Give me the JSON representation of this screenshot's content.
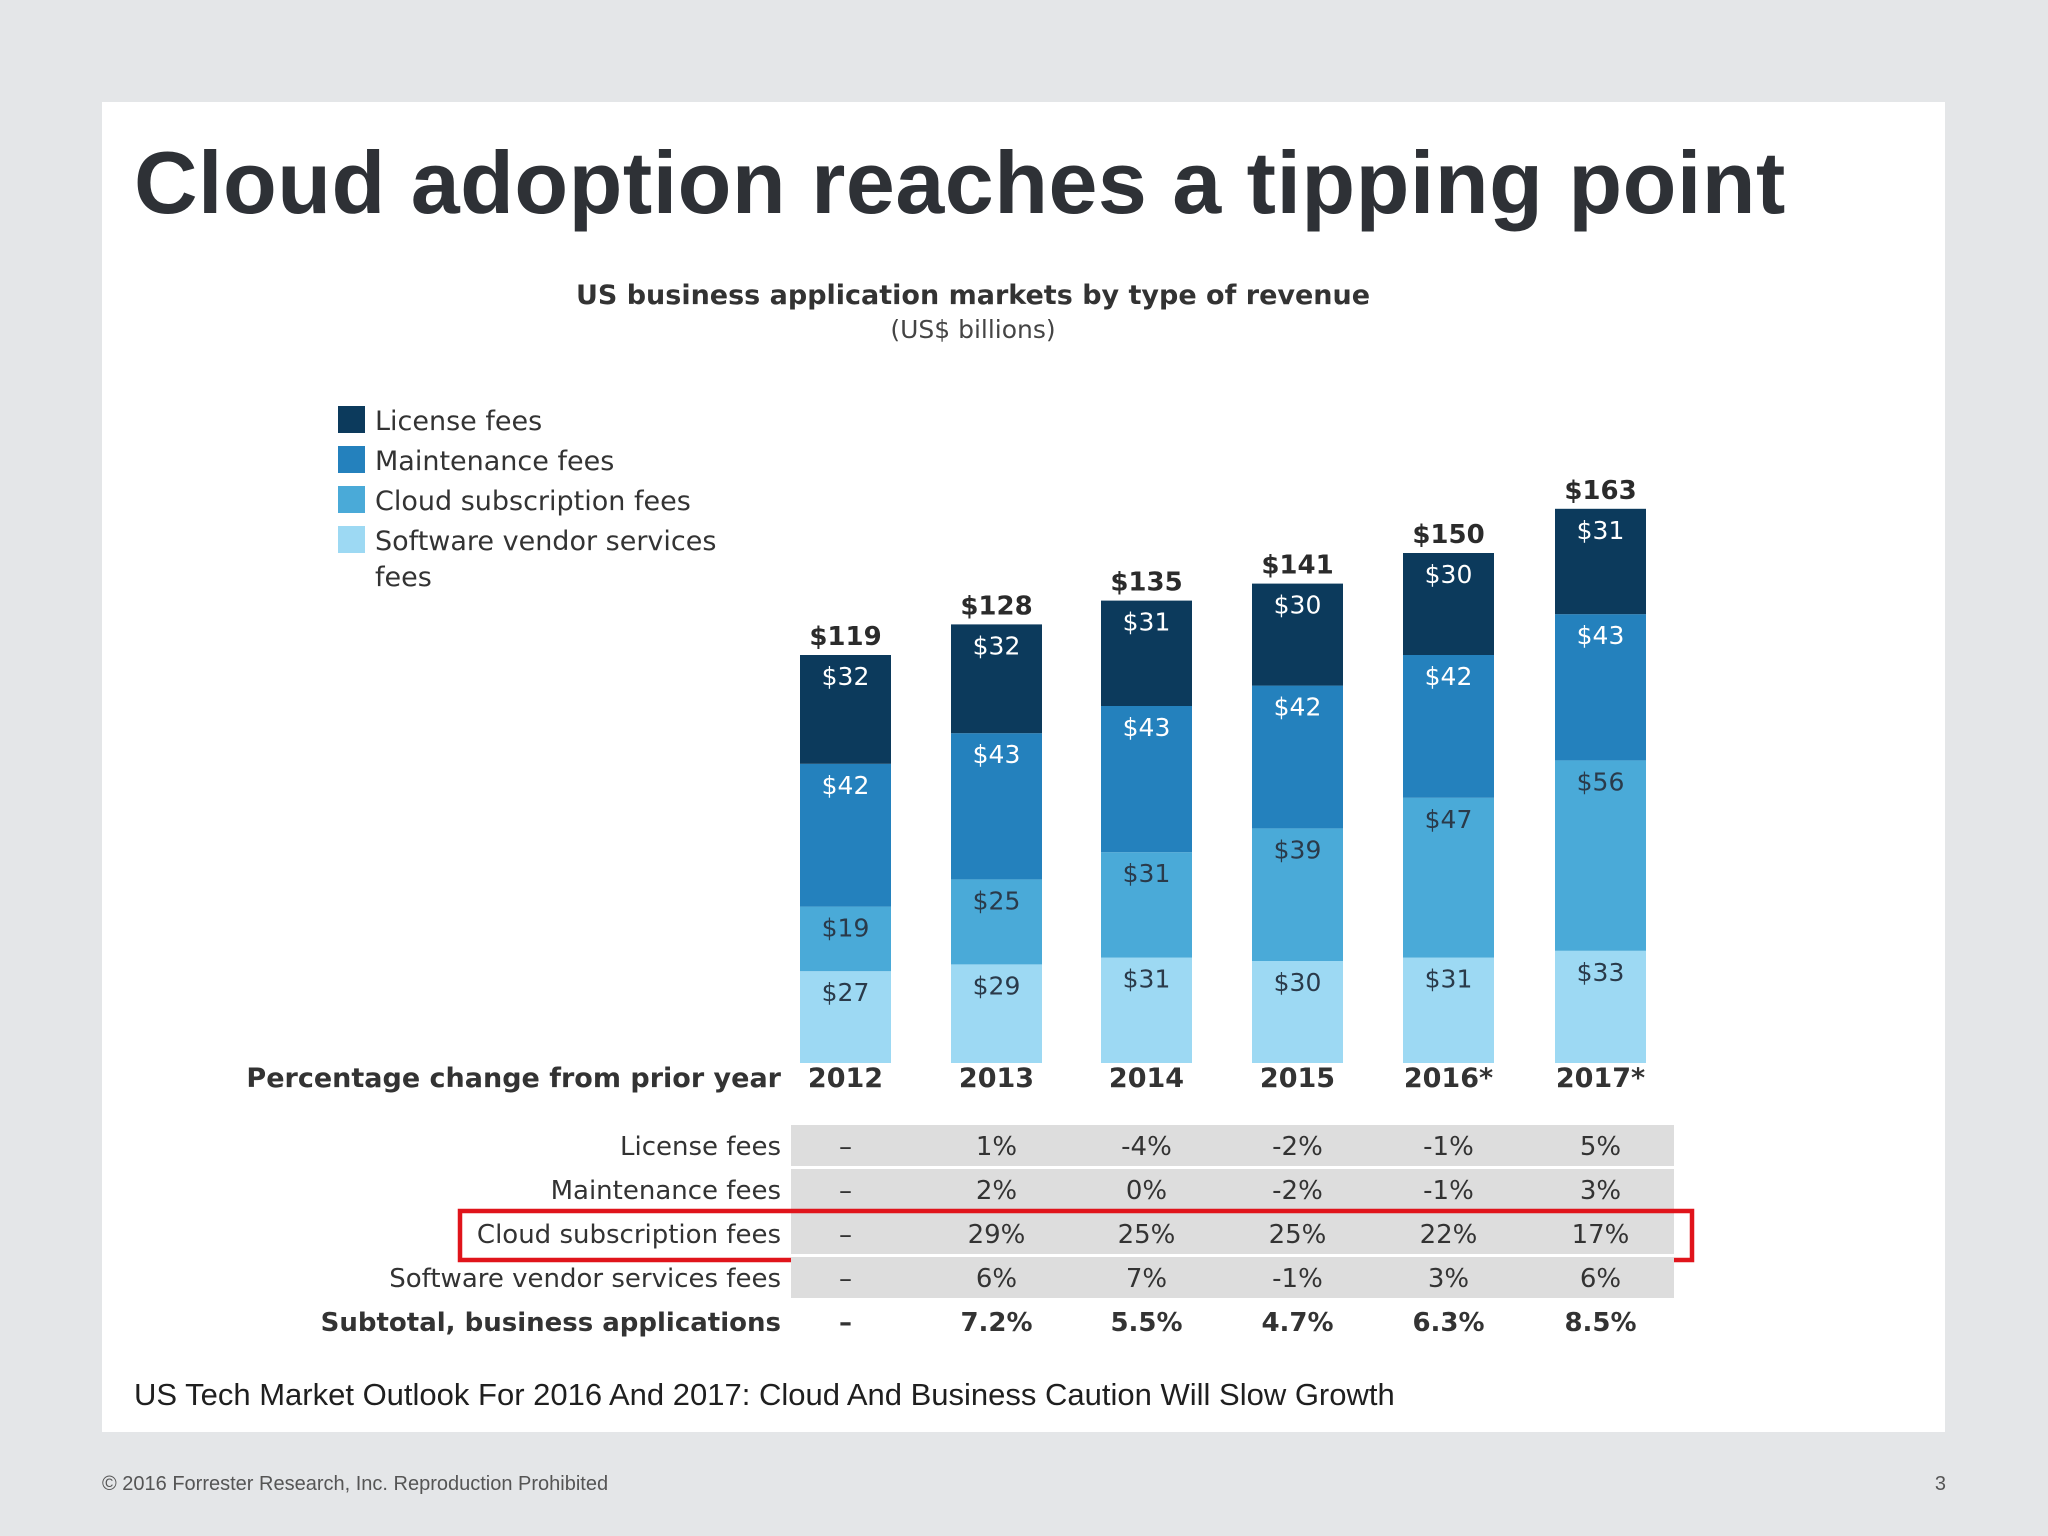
{
  "slide": {
    "title": "Cloud adoption reaches a tipping point",
    "source": "US Tech Market Outlook For 2016 And 2017: Cloud And Business Caution Will Slow Growth",
    "footer": "© 2016 Forrester Research, Inc. Reproduction Prohibited",
    "page_number": "3"
  },
  "colors": {
    "license": "#0c3a5c",
    "maintenance": "#2481bd",
    "cloud": "#4aaad8",
    "services": "#9dd9f3",
    "highlight": "#e0141b",
    "table_band": "#dddddd"
  },
  "chart_data": {
    "type": "bar",
    "stacked": true,
    "title": "US business application markets by type of revenue",
    "subtitle": "(US$ billions)",
    "categories": [
      "2012",
      "2013",
      "2014",
      "2015",
      "2016*",
      "2017*"
    ],
    "totals": [
      "$119",
      "$128",
      "$135",
      "$141",
      "$150",
      "$163"
    ],
    "total_values": [
      119,
      128,
      135,
      141,
      150,
      163
    ],
    "series": [
      {
        "name": "License fees",
        "key": "license",
        "values": [
          32,
          32,
          31,
          30,
          30,
          31
        ],
        "labels": [
          "$32",
          "$32",
          "$31",
          "$30",
          "$30",
          "$31"
        ]
      },
      {
        "name": "Maintenance fees",
        "key": "maintenance",
        "values": [
          42,
          43,
          43,
          42,
          42,
          43
        ],
        "labels": [
          "$42",
          "$43",
          "$43",
          "$42",
          "$42",
          "$43"
        ]
      },
      {
        "name": "Cloud subscription fees",
        "key": "cloud",
        "values": [
          19,
          25,
          31,
          39,
          47,
          56
        ],
        "labels": [
          "$19",
          "$25",
          "$31",
          "$39",
          "$47",
          "$56"
        ]
      },
      {
        "name": "Software vendor services fees",
        "key": "services",
        "values": [
          27,
          29,
          31,
          30,
          31,
          33
        ],
        "labels": [
          "$27",
          "$29",
          "$31",
          "$30",
          "$31",
          "$33"
        ]
      }
    ],
    "legend_lines": [
      [
        "License fees"
      ],
      [
        "Maintenance fees"
      ],
      [
        "Cloud subscription fees"
      ],
      [
        "Software vendor services",
        "fees"
      ]
    ],
    "legend_position": "top-left",
    "table": {
      "header": "Percentage change from prior year",
      "rows": [
        {
          "label": "License fees",
          "values": [
            "–",
            "1%",
            "-4%",
            "-2%",
            "-1%",
            "5%"
          ],
          "bold": false,
          "band": true,
          "highlight": false
        },
        {
          "label": "Maintenance fees",
          "values": [
            "–",
            "2%",
            "0%",
            "-2%",
            "-1%",
            "3%"
          ],
          "bold": false,
          "band": true,
          "highlight": false
        },
        {
          "label": "Cloud subscription fees",
          "values": [
            "–",
            "29%",
            "25%",
            "25%",
            "22%",
            "17%"
          ],
          "bold": false,
          "band": true,
          "highlight": true
        },
        {
          "label": "Software vendor services fees",
          "values": [
            "–",
            "6%",
            "7%",
            "-1%",
            "3%",
            "6%"
          ],
          "bold": false,
          "band": true,
          "highlight": false
        },
        {
          "label": "Subtotal, business applications",
          "values": [
            "–",
            "7.2%",
            "5.5%",
            "4.7%",
            "6.3%",
            "8.5%"
          ],
          "bold": true,
          "band": false,
          "highlight": false
        }
      ]
    }
  }
}
